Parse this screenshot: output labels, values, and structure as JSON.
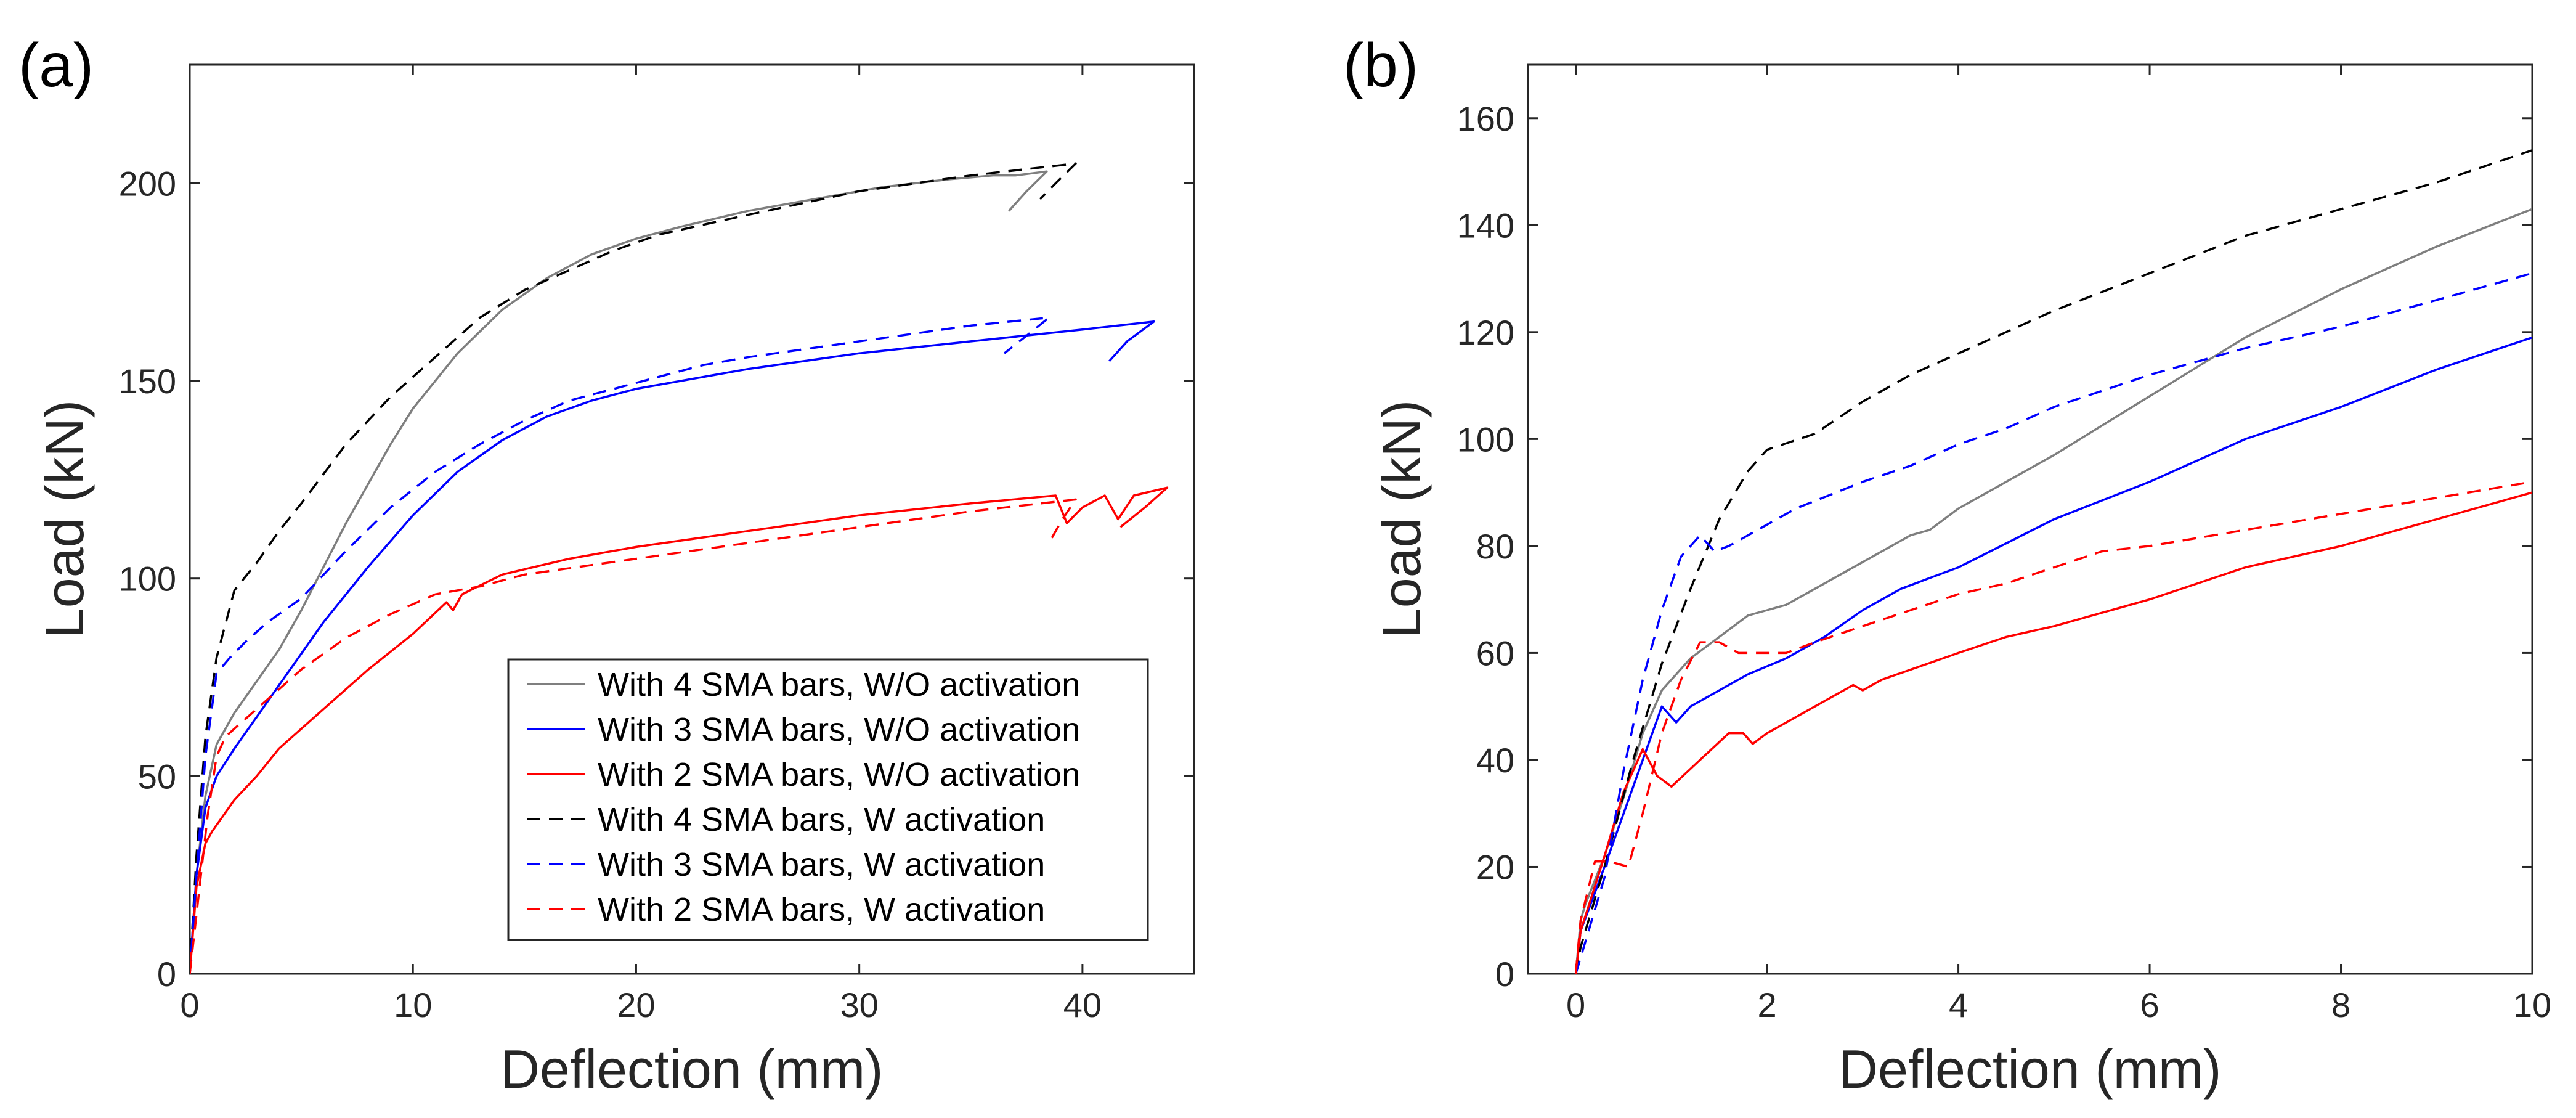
{
  "chart_data": [
    {
      "type": "line",
      "panel_label": "(a)",
      "xlabel": "Deflection (mm)",
      "ylabel": "Load (kN)",
      "xlim": [
        0,
        45
      ],
      "ylim": [
        0,
        230
      ],
      "xticks": [
        "0",
        "10",
        "20",
        "30",
        "40"
      ],
      "yticks": [
        "0",
        "50",
        "100",
        "150",
        "200"
      ],
      "legend_position": "lower-right",
      "series": [
        {
          "name": "With 4 SMA bars, W/O activation",
          "color": "#7f7f7f",
          "dash": "solid",
          "x": [
            0,
            0.3,
            0.7,
            1.2,
            2,
            3,
            4,
            5,
            6,
            7,
            8,
            9,
            10,
            12,
            14,
            16,
            18,
            20,
            22,
            25,
            28,
            31,
            34,
            36,
            37,
            38.4,
            37.5,
            36.7
          ],
          "y": [
            0,
            25,
            45,
            58,
            66,
            74,
            82,
            92,
            103,
            114,
            124,
            134,
            143,
            157,
            168,
            176,
            182,
            186,
            189,
            193,
            196,
            199,
            201,
            202,
            202,
            203,
            198,
            193
          ]
        },
        {
          "name": "With 3 SMA bars, W/O activation",
          "color": "#0000ff",
          "dash": "solid",
          "x": [
            0,
            0.3,
            0.7,
            1.2,
            2,
            3,
            4,
            5,
            6,
            8,
            10,
            12,
            14,
            16,
            18,
            20,
            25,
            30,
            35,
            40,
            43.2,
            42,
            41.2
          ],
          "y": [
            0,
            25,
            42,
            50,
            57,
            65,
            73,
            81,
            89,
            103,
            116,
            127,
            135,
            141,
            145,
            148,
            153,
            157,
            160,
            163,
            165,
            160,
            155
          ]
        },
        {
          "name": "With 2 SMA bars, W/O activation",
          "color": "#ff0000",
          "dash": "solid",
          "x": [
            0,
            0.3,
            0.7,
            1.0,
            1.5,
            2,
            3,
            4,
            5,
            6,
            8,
            10,
            11.5,
            11.8,
            12.2,
            14,
            17,
            20,
            25,
            30,
            35,
            38.8,
            39.3,
            40,
            41,
            41.6,
            42.3,
            43.8,
            42.8,
            41.7
          ],
          "y": [
            0,
            22,
            33,
            36,
            40,
            44,
            50,
            57,
            62,
            67,
            77,
            86,
            94,
            92,
            96,
            101,
            105,
            108,
            112,
            116,
            119,
            121,
            114,
            118,
            121,
            115,
            121,
            123,
            118,
            113
          ]
        },
        {
          "name": "With 4 SMA bars, W activation",
          "color": "#000000",
          "dash": "dashed",
          "x": [
            0,
            0.3,
            0.7,
            1.2,
            2,
            3,
            4,
            5,
            7,
            9,
            11,
            13,
            15,
            17,
            19,
            21,
            25,
            30,
            35,
            39.7,
            38.8,
            38.1
          ],
          "y": [
            0,
            30,
            60,
            80,
            97,
            104,
            112,
            119,
            134,
            146,
            156,
            166,
            173,
            178,
            183,
            187,
            192,
            198,
            202,
            205,
            200,
            196
          ]
        },
        {
          "name": "With 3 SMA bars, W activation",
          "color": "#0000ff",
          "dash": "dashed",
          "x": [
            0,
            0.3,
            0.7,
            1.2,
            1.8,
            2.5,
            3.5,
            5,
            7,
            9,
            11,
            13,
            15,
            17,
            19,
            21,
            23,
            25,
            30,
            35,
            38.5,
            37.4,
            36.5
          ],
          "y": [
            0,
            25,
            55,
            76,
            80,
            84,
            89,
            95,
            107,
            118,
            127,
            134,
            140,
            145,
            148,
            151,
            154,
            156,
            160,
            164,
            166,
            161,
            157
          ]
        },
        {
          "name": "With 2 SMA bars, W activation",
          "color": "#ff0000",
          "dash": "dashed",
          "x": [
            0,
            0.3,
            0.5,
            0.8,
            1.2,
            1.6,
            2,
            3,
            4,
            5,
            7,
            9,
            11,
            13,
            15,
            20,
            25,
            30,
            35,
            39.7,
            39.1,
            38.6
          ],
          "y": [
            0,
            15,
            25,
            40,
            55,
            60,
            62,
            67,
            72,
            77,
            85,
            91,
            96,
            98,
            101,
            105,
            109,
            113,
            117,
            120,
            115,
            110
          ]
        }
      ]
    },
    {
      "type": "line",
      "panel_label": "(b)",
      "xlabel": "Deflection (mm)",
      "ylabel": "Load (kN)",
      "xlim": [
        -0.5,
        10
      ],
      "ylim": [
        0,
        170
      ],
      "xticks": [
        "0",
        "2",
        "4",
        "6",
        "8",
        "10"
      ],
      "yticks": [
        "0",
        "20",
        "40",
        "60",
        "80",
        "100",
        "120",
        "140",
        "160"
      ],
      "series": [
        {
          "name": "With 4 SMA bars, W/O activation",
          "color": "#7f7f7f",
          "dash": "solid",
          "x": [
            0,
            0.05,
            0.1,
            0.3,
            0.5,
            0.7,
            0.9,
            1.2,
            1.5,
            1.8,
            2.0,
            2.2,
            2.5,
            2.8,
            3.2,
            3.5,
            3.7,
            4.0,
            5,
            6,
            7,
            8,
            9,
            10
          ],
          "y": [
            0,
            10,
            13,
            22,
            33,
            45,
            53,
            59,
            63,
            67,
            68,
            69,
            72,
            75,
            79,
            82,
            83,
            87,
            97,
            108,
            119,
            128,
            136,
            143
          ]
        },
        {
          "name": "With 3 SMA bars, W/O activation",
          "color": "#0000ff",
          "dash": "solid",
          "x": [
            0,
            0.05,
            0.3,
            0.6,
            0.9,
            1.05,
            1.2,
            1.5,
            1.8,
            2.2,
            2.6,
            3.0,
            3.4,
            3.55,
            3.7,
            4.0,
            5,
            6,
            7,
            8,
            9,
            10
          ],
          "y": [
            0,
            8,
            20,
            35,
            50,
            47,
            50,
            53,
            56,
            59,
            63,
            68,
            72,
            73,
            74,
            76,
            85,
            92,
            100,
            106,
            113,
            119
          ]
        },
        {
          "name": "With 2 SMA bars, W/O activation",
          "color": "#ff0000",
          "dash": "solid",
          "x": [
            0,
            0.05,
            0.3,
            0.5,
            0.7,
            0.85,
            1.0,
            1.3,
            1.6,
            1.75,
            1.85,
            2.0,
            2.5,
            2.9,
            3.0,
            3.2,
            4.0,
            4.5,
            5,
            6,
            7,
            8,
            9,
            10
          ],
          "y": [
            0,
            8,
            22,
            34,
            42,
            37,
            35,
            40,
            45,
            45,
            43,
            45,
            50,
            54,
            53,
            55,
            60,
            63,
            65,
            70,
            76,
            80,
            85,
            90
          ]
        },
        {
          "name": "With 4 SMA bars, W activation",
          "color": "#000000",
          "dash": "dashed",
          "x": [
            0,
            0.05,
            0.3,
            0.6,
            0.9,
            1.2,
            1.5,
            1.8,
            2.0,
            2.5,
            3,
            3.5,
            4,
            4.5,
            5,
            6,
            7,
            8,
            9,
            10
          ],
          "y": [
            0,
            5,
            20,
            40,
            58,
            72,
            85,
            94,
            98,
            101,
            107,
            112,
            116,
            120,
            124,
            131,
            138,
            143,
            148,
            154
          ]
        },
        {
          "name": "With 3 SMA bars, W activation",
          "color": "#0000ff",
          "dash": "dashed",
          "x": [
            0,
            0.05,
            0.3,
            0.5,
            0.7,
            0.9,
            1.1,
            1.3,
            1.45,
            1.6,
            1.9,
            2.3,
            3,
            3.5,
            4,
            4.5,
            5,
            6,
            7,
            8,
            9,
            10
          ],
          "y": [
            0,
            3,
            18,
            38,
            55,
            68,
            78,
            82,
            79,
            80,
            83,
            87,
            92,
            95,
            99,
            102,
            106,
            112,
            117,
            121,
            126,
            131
          ]
        },
        {
          "name": "With 2 SMA bars, W activation",
          "color": "#ff0000",
          "dash": "dashed",
          "x": [
            0,
            0.05,
            0.2,
            0.35,
            0.55,
            0.7,
            0.9,
            1.1,
            1.3,
            1.5,
            1.7,
            2.0,
            2.2,
            2.5,
            3,
            3.5,
            4,
            4.5,
            5,
            5.5,
            6,
            7,
            8,
            9,
            10
          ],
          "y": [
            0,
            10,
            21,
            21,
            20,
            30,
            45,
            55,
            62,
            62,
            60,
            60,
            60,
            62,
            65,
            68,
            71,
            73,
            76,
            79,
            80,
            83,
            86,
            89,
            92
          ]
        }
      ]
    }
  ]
}
